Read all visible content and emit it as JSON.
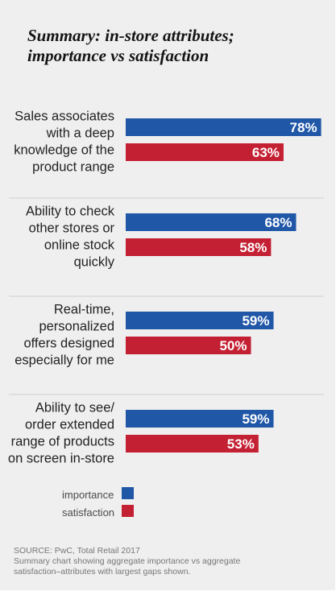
{
  "title_lines": [
    "Summary: in-store attributes;",
    "importance vs satisfaction"
  ],
  "chart_data": {
    "type": "bar",
    "orientation": "horizontal",
    "title": "Summary: in-store attributes; importance vs satisfaction",
    "categories": [
      [
        "Sales associates",
        "with a deep",
        "knowledge of the",
        "product range"
      ],
      [
        "Ability to check",
        "other stores or",
        "online stock",
        "quickly"
      ],
      [
        "Real-time,",
        "personalized",
        "offers designed",
        "especially for me"
      ],
      [
        "Ability to see/",
        "order extended",
        "range of products",
        "on screen in-store"
      ]
    ],
    "series": [
      {
        "name": "importance",
        "values": [
          78,
          68,
          59,
          59
        ],
        "labels": [
          "78%",
          "68%",
          "59%",
          "59%"
        ],
        "color": "#2057a7"
      },
      {
        "name": "satisfaction",
        "values": [
          63,
          58,
          50,
          53
        ],
        "labels": [
          "63%",
          "58%",
          "50%",
          "53%"
        ],
        "color": "#c42033"
      }
    ],
    "unit": "%",
    "legend_position": "bottom-left",
    "grid": false
  },
  "source_lines": [
    "SOURCE: PwC, Total Retail 2017",
    "Summary chart showing aggregate importance vs aggregate",
    "satisfaction–attributes with largest gaps shown."
  ],
  "colors": {
    "background": "#efefef",
    "divider": "#cfcfcf",
    "importance": "#2057a7",
    "satisfaction": "#c42033"
  }
}
